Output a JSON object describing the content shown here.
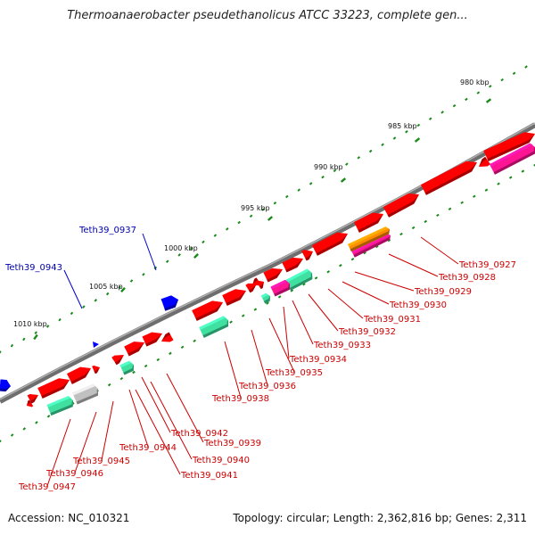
{
  "title": "Thermoanaerobacter pseudethanolicus ATCC 33223, complete gen...",
  "footer": {
    "accession": "Accession: NC_010321",
    "summary": "Topology: circular; Length: 2,362,816 bp; Genes: 2,311"
  },
  "scale_labels": [
    "980 kbp",
    "985 kbp",
    "990 kbp",
    "995 kbp",
    "1000 kbp",
    "1005 kbp",
    "1010 kbp"
  ],
  "genes_blue": [
    "Teth39_0937",
    "Teth39_0943"
  ],
  "genes_red": [
    "Teth39_0927",
    "Teth39_0928",
    "Teth39_0929",
    "Teth39_0930",
    "Teth39_0931",
    "Teth39_0932",
    "Teth39_0933",
    "Teth39_0934",
    "Teth39_0935",
    "Teth39_0936",
    "Teth39_0938",
    "Teth39_0939",
    "Teth39_0940",
    "Teth39_0941",
    "Teth39_0942",
    "Teth39_0944",
    "Teth39_0945",
    "Teth39_0946",
    "Teth39_0947"
  ],
  "colors": {
    "cds": "#ff0000",
    "rna": "#40e0a0",
    "pseudo": "#c0c0c0",
    "magenta": "#ff1493",
    "orange": "#ff8c00",
    "mobile": "#0000ff",
    "backbone": "#808080",
    "tick": "#1a8a1a",
    "label_red": "#cc0000",
    "label_blue": "#0000aa"
  }
}
